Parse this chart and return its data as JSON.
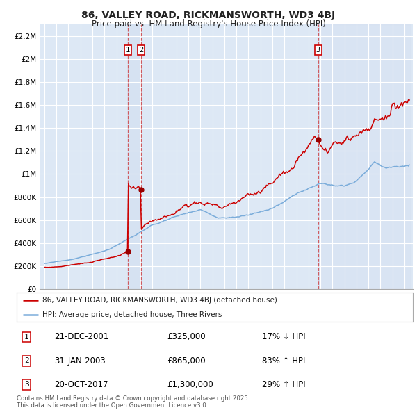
{
  "title": "86, VALLEY ROAD, RICKMANSWORTH, WD3 4BJ",
  "subtitle": "Price paid vs. HM Land Registry's House Price Index (HPI)",
  "title_fontsize": 10,
  "subtitle_fontsize": 8.5,
  "background_color": "#ffffff",
  "plot_bg_color": "#dde8f5",
  "grid_color": "#ffffff",
  "red_line_color": "#cc0000",
  "blue_line_color": "#7aacda",
  "sale1_date": 2001.97,
  "sale1_price": 325000,
  "sale2_date": 2003.08,
  "sale2_price": 865000,
  "sale3_date": 2017.8,
  "sale3_price": 1300000,
  "legend_red": "86, VALLEY ROAD, RICKMANSWORTH, WD3 4BJ (detached house)",
  "legend_blue": "HPI: Average price, detached house, Three Rivers",
  "footnote": "Contains HM Land Registry data © Crown copyright and database right 2025.\nThis data is licensed under the Open Government Licence v3.0.",
  "ytick_labels": [
    "£0",
    "£200K",
    "£400K",
    "£600K",
    "£800K",
    "£1M",
    "£1.2M",
    "£1.4M",
    "£1.6M",
    "£1.8M",
    "£2M",
    "£2.2M"
  ],
  "ytick_values": [
    0,
    200000,
    400000,
    600000,
    800000,
    1000000,
    1200000,
    1400000,
    1600000,
    1800000,
    2000000,
    2200000
  ],
  "table_rows": [
    {
      "num": "1",
      "date": "21-DEC-2001",
      "price": "£325,000",
      "change": "17% ↓ HPI"
    },
    {
      "num": "2",
      "date": "31-JAN-2003",
      "price": "£865,000",
      "change": "83% ↑ HPI"
    },
    {
      "num": "3",
      "date": "20-OCT-2017",
      "price": "£1,300,000",
      "change": "29% ↑ HPI"
    }
  ]
}
